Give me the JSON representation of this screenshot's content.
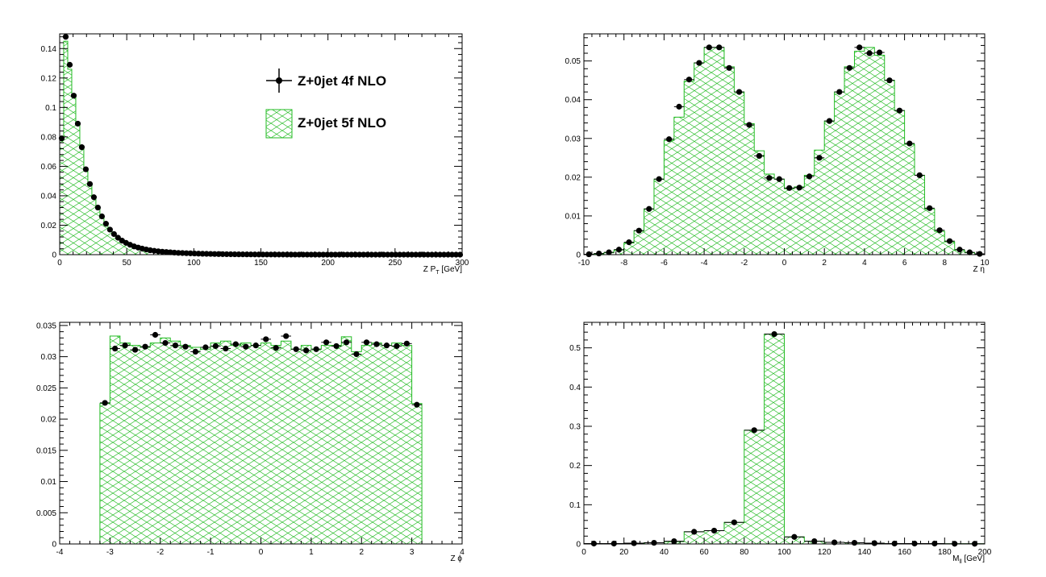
{
  "colors": {
    "hist": "#22bb22",
    "points": "#000000",
    "axis": "#000000"
  },
  "legend": {
    "entries": [
      {
        "label": "Z+0jet 4f NLO",
        "style": "points"
      },
      {
        "label": "Z+0jet 5f NLO",
        "style": "hatched-hist"
      }
    ],
    "placement": "top-right of first panel"
  },
  "chart_data": [
    {
      "type": "histogram",
      "xlabel_main": "Z P",
      "xlabel_sub": "T",
      "xlabel_tail": " [GeV]",
      "xlim": [
        0,
        300
      ],
      "ylim": [
        0,
        0.15
      ],
      "xticks": [
        "0",
        "50",
        "100",
        "150",
        "200",
        "250",
        "300"
      ],
      "yticks": [
        "0",
        "0.02",
        "0.04",
        "0.06",
        "0.08",
        "0.1",
        "0.12",
        "0.14"
      ],
      "bins": [
        0,
        3,
        6,
        9,
        12,
        15,
        18,
        21,
        24,
        27,
        30,
        33,
        36,
        39,
        42,
        45,
        48,
        51,
        54,
        57,
        60,
        63,
        66,
        69,
        72,
        75,
        78,
        81,
        84,
        87,
        90,
        93,
        96,
        99,
        102,
        105,
        108,
        111,
        114,
        117,
        120,
        123,
        126,
        129,
        132,
        135,
        138,
        141,
        144,
        147,
        150,
        153,
        156,
        159,
        162,
        165,
        168,
        171,
        174,
        177,
        180,
        183,
        186,
        189,
        192,
        195,
        198,
        201,
        204,
        207,
        210,
        213,
        216,
        219,
        222,
        225,
        228,
        231,
        234,
        237,
        240,
        243,
        246,
        249,
        252,
        255,
        258,
        261,
        264,
        267,
        270,
        273,
        276,
        279,
        282,
        285,
        288,
        291,
        294,
        297,
        300
      ],
      "series": [
        {
          "name": "Z+0jet 5f NLO",
          "style": "hist",
          "values": [
            0.078,
            0.145,
            0.126,
            0.107,
            0.088,
            0.072,
            0.058,
            0.048,
            0.039,
            0.032,
            0.026,
            0.021,
            0.017,
            0.014,
            0.0115,
            0.0095,
            0.008,
            0.0067,
            0.0056,
            0.0048,
            0.0041,
            0.0035,
            0.003,
            0.0026,
            0.0023,
            0.002,
            0.0018,
            0.0016,
            0.0014,
            0.0012,
            0.0011,
            0.001,
            0.0009,
            0.0008,
            0.0007,
            0.0006,
            0.00055,
            0.0005,
            0.00045,
            0.0004,
            0.00035,
            0.0003,
            0.00028,
            0.00025,
            0.00022,
            0.0002,
            0.00018,
            0.00016,
            0.00014,
            0.00012,
            0.0001,
            0.0001,
            9e-05,
            8e-05,
            7e-05,
            6e-05,
            5e-05,
            5e-05,
            4e-05,
            4e-05,
            3e-05,
            3e-05,
            3e-05,
            2e-05,
            2e-05,
            2e-05,
            2e-05,
            1e-05,
            1e-05,
            1e-05,
            1e-05,
            1e-05,
            1e-05,
            1e-05,
            1e-05,
            1e-05,
            1e-05,
            0,
            0,
            0,
            0,
            0,
            0,
            0,
            0,
            0,
            0,
            0,
            0,
            0,
            0,
            0,
            0,
            0,
            0,
            0,
            0,
            0,
            0,
            0
          ]
        },
        {
          "name": "Z+0jet 4f NLO",
          "style": "points",
          "values": [
            0.079,
            0.148,
            0.129,
            0.108,
            0.089,
            0.073,
            0.058,
            0.048,
            0.039,
            0.032,
            0.026,
            0.021,
            0.017,
            0.014,
            0.0115,
            0.0095,
            0.008,
            0.0067,
            0.0056,
            0.0048,
            0.0041,
            0.0035,
            0.003,
            0.0026,
            0.0023,
            0.002,
            0.0018,
            0.0016,
            0.0014,
            0.0012,
            0.0011,
            0.001,
            0.0009,
            0.0008,
            0.0007,
            0.0006,
            0.00055,
            0.0005,
            0.00045,
            0.0004,
            0.00035,
            0.0003,
            0.00028,
            0.00025,
            0.00022,
            0.0002,
            0.00018,
            0.00016,
            0.00014,
            0.00012,
            0.0001,
            0.0001,
            9e-05,
            8e-05,
            7e-05,
            6e-05,
            5e-05,
            5e-05,
            4e-05,
            4e-05,
            3e-05,
            3e-05,
            3e-05,
            2e-05,
            2e-05,
            2e-05,
            2e-05,
            1e-05,
            1e-05,
            1e-05,
            1e-05,
            1e-05,
            1e-05,
            1e-05,
            1e-05,
            1e-05,
            1e-05,
            0,
            0,
            0,
            0,
            0,
            0,
            0,
            0,
            0,
            0,
            0,
            0,
            0,
            0,
            0,
            0,
            0,
            0,
            0,
            0,
            0,
            0,
            0
          ]
        }
      ]
    },
    {
      "type": "histogram",
      "xlabel_main": "Z η",
      "xlabel_sub": "",
      "xlabel_tail": "",
      "xlim": [
        -10,
        10
      ],
      "ylim": [
        0,
        0.057
      ],
      "xticks": [
        "-10",
        "-8",
        "-6",
        "-4",
        "-2",
        "0",
        "2",
        "4",
        "6",
        "8",
        "10"
      ],
      "yticks": [
        "0",
        "0.01",
        "0.02",
        "0.03",
        "0.04",
        "0.05"
      ],
      "bins": [
        -10,
        -9.5,
        -9,
        -8.5,
        -8,
        -7.5,
        -7,
        -6.5,
        -6,
        -5.5,
        -5,
        -4.5,
        -4,
        -3.5,
        -3,
        -2.5,
        -2,
        -1.5,
        -1,
        -0.5,
        0,
        0.5,
        1,
        1.5,
        2,
        2.5,
        3,
        3.5,
        4,
        4.5,
        5,
        5.5,
        6,
        6.5,
        7,
        7.5,
        8,
        8.5,
        9,
        9.5,
        10
      ],
      "series": [
        {
          "name": "Z+0jet 5f NLO",
          "style": "hist",
          "values": [
            0,
            0.0002,
            0.0005,
            0.0012,
            0.003,
            0.0062,
            0.0118,
            0.0195,
            0.0295,
            0.0355,
            0.0448,
            0.0495,
            0.0535,
            0.0535,
            0.0485,
            0.042,
            0.0338,
            0.0268,
            0.0208,
            0.0195,
            0.017,
            0.0175,
            0.0205,
            0.027,
            0.0345,
            0.042,
            0.0485,
            0.0525,
            0.0535,
            0.0515,
            0.045,
            0.0372,
            0.0285,
            0.0205,
            0.0118,
            0.006,
            0.0033,
            0.0012,
            0.0005,
            0.0001
          ]
        },
        {
          "name": "Z+0jet 4f NLO",
          "style": "points",
          "values": [
            0.0001,
            0.0003,
            0.0006,
            0.0013,
            0.0032,
            0.0062,
            0.0118,
            0.0195,
            0.0298,
            0.0382,
            0.0452,
            0.0495,
            0.0535,
            0.0535,
            0.0482,
            0.042,
            0.0335,
            0.0255,
            0.0198,
            0.0195,
            0.0172,
            0.0173,
            0.0202,
            0.025,
            0.0345,
            0.042,
            0.0482,
            0.0535,
            0.052,
            0.0522,
            0.045,
            0.0372,
            0.0287,
            0.0205,
            0.012,
            0.0063,
            0.0035,
            0.0013,
            0.0006,
            0.0002
          ]
        }
      ]
    },
    {
      "type": "histogram",
      "xlabel_main": "Z ϕ",
      "xlabel_sub": "",
      "xlabel_tail": "",
      "xlim": [
        -4,
        4
      ],
      "ylim": [
        0,
        0.0355
      ],
      "xticks": [
        "-4",
        "-3",
        "-2",
        "-1",
        "0",
        "1",
        "2",
        "3",
        "4"
      ],
      "yticks": [
        "0",
        "0.005",
        "0.01",
        "0.015",
        "0.02",
        "0.025",
        "0.03",
        "0.035"
      ],
      "bins": [
        -3.2,
        -3.0,
        -2.8,
        -2.6,
        -2.4,
        -2.2,
        -2.0,
        -1.8,
        -1.6,
        -1.4,
        -1.2,
        -1.0,
        -0.8,
        -0.6,
        -0.4,
        -0.2,
        0.0,
        0.2,
        0.4,
        0.6,
        0.8,
        1.0,
        1.2,
        1.4,
        1.6,
        1.8,
        2.0,
        2.2,
        2.4,
        2.6,
        2.8,
        3.0,
        3.2
      ],
      "series": [
        {
          "name": "Z+0jet 5f NLO",
          "style": "hist",
          "values": [
            0.0225,
            0.0333,
            0.0322,
            0.0318,
            0.0315,
            0.0322,
            0.033,
            0.0325,
            0.0318,
            0.0315,
            0.0312,
            0.0322,
            0.0325,
            0.0318,
            0.0322,
            0.0318,
            0.0322,
            0.0318,
            0.0325,
            0.0312,
            0.0318,
            0.0312,
            0.0318,
            0.0318,
            0.0332,
            0.0308,
            0.0318,
            0.0322,
            0.0318,
            0.0322,
            0.0318,
            0.0225
          ]
        },
        {
          "name": "Z+0jet 4f NLO",
          "style": "points",
          "values": [
            0.0226,
            0.0313,
            0.0318,
            0.0311,
            0.0316,
            0.0335,
            0.0322,
            0.0318,
            0.0316,
            0.0308,
            0.0315,
            0.0317,
            0.0313,
            0.032,
            0.0316,
            0.0318,
            0.0328,
            0.0314,
            0.0333,
            0.0312,
            0.031,
            0.0312,
            0.0323,
            0.0317,
            0.0323,
            0.0304,
            0.0323,
            0.032,
            0.0318,
            0.0317,
            0.0321,
            0.0223
          ]
        }
      ]
    },
    {
      "type": "histogram",
      "xlabel_main": "M",
      "xlabel_sub": "ll",
      "xlabel_tail": " [GeV]",
      "xlim": [
        0,
        200
      ],
      "ylim": [
        0,
        0.565
      ],
      "xticks": [
        "0",
        "20",
        "40",
        "60",
        "80",
        "100",
        "120",
        "140",
        "160",
        "180",
        "200"
      ],
      "yticks": [
        "0",
        "0.1",
        "0.2",
        "0.3",
        "0.4",
        "0.5"
      ],
      "bins": [
        0,
        10,
        20,
        30,
        40,
        50,
        60,
        70,
        80,
        90,
        100,
        110,
        120,
        130,
        140,
        150,
        160,
        170,
        180,
        190,
        200
      ],
      "series": [
        {
          "name": "Z+0jet 5f NLO",
          "style": "hist",
          "values": [
            0.001,
            0.001,
            0.002,
            0.003,
            0.006,
            0.031,
            0.034,
            0.055,
            0.29,
            0.535,
            0.018,
            0.007,
            0.004,
            0.003,
            0.002,
            0.001,
            0.001,
            0.001,
            0.0005,
            0.0005
          ]
        },
        {
          "name": "Z+0jet 4f NLO",
          "style": "points",
          "values": [
            0.001,
            0.001,
            0.002,
            0.003,
            0.007,
            0.031,
            0.034,
            0.055,
            0.29,
            0.535,
            0.018,
            0.007,
            0.004,
            0.003,
            0.002,
            0.001,
            0.001,
            0.001,
            0.0005,
            0.0005
          ]
        }
      ]
    }
  ]
}
